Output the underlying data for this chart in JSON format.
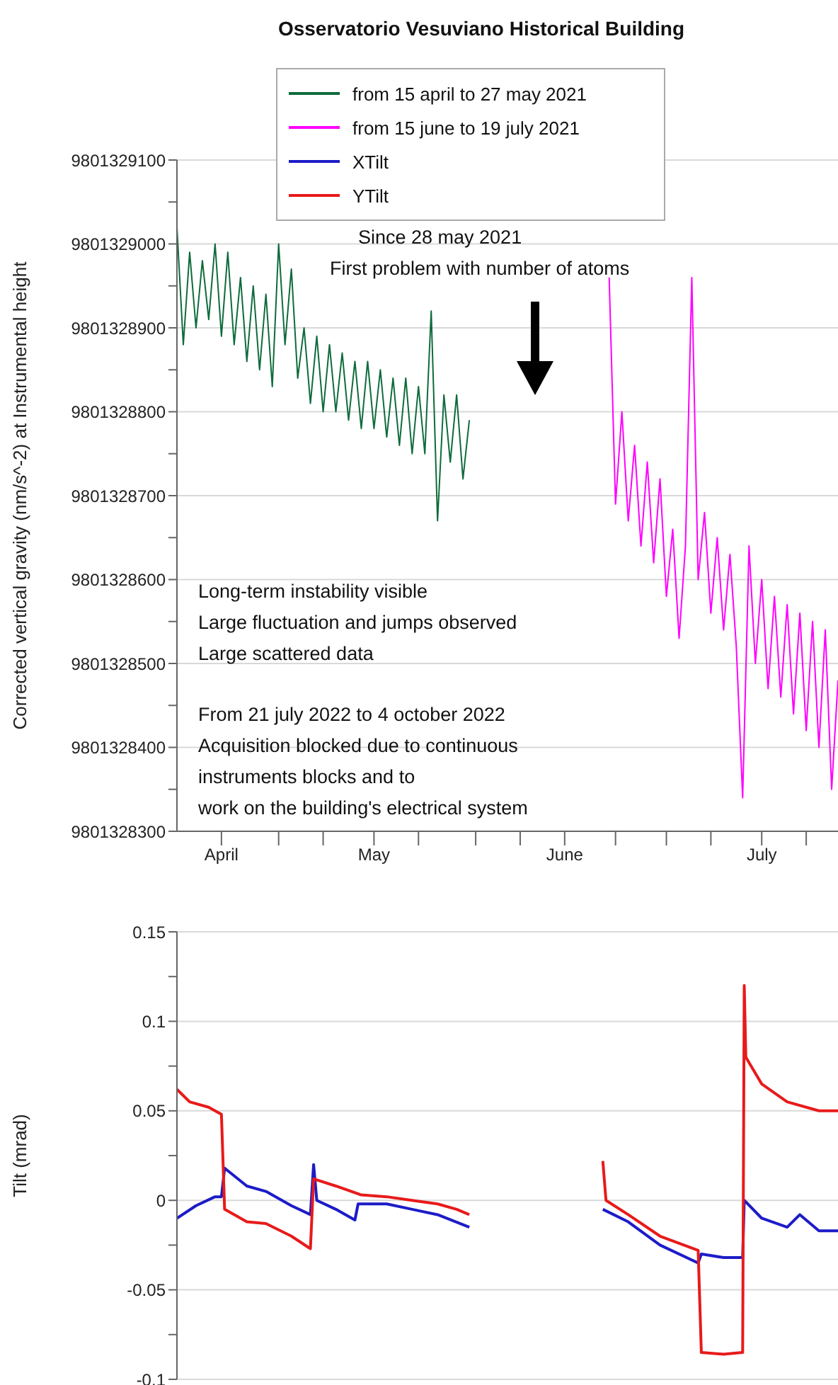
{
  "chart_data": [
    {
      "type": "line",
      "title": "Osservatorio Vesuviano Historical Building",
      "ylabel": "Corrected vertical gravity (nm/s^-2) at Instrumental height",
      "annotations": [
        "Since 28 may 2021",
        "First problem with number of atoms",
        "Long-term instability visible",
        "Large fluctuation and jumps observed",
        "Large scattered data",
        "From 21 july 2022 to 4 october 2022",
        "Acquisition blocked due to continuous",
        "instruments blocks and to",
        "work on the building's electrical system"
      ],
      "series": [
        {
          "name": "from 15 april to 27 may 2021",
          "color": "#0e6b3c",
          "x": [
            "2021-04-15",
            "2021-04-16",
            "2021-04-17",
            "2021-04-18",
            "2021-04-19",
            "2021-04-20",
            "2021-04-21",
            "2021-04-22",
            "2021-04-23",
            "2021-04-24",
            "2021-04-25",
            "2021-04-26",
            "2021-04-27",
            "2021-04-28",
            "2021-04-29",
            "2021-04-30",
            "2021-05-01",
            "2021-05-02",
            "2021-05-03",
            "2021-05-04",
            "2021-05-05",
            "2021-05-06",
            "2021-05-07",
            "2021-05-08",
            "2021-05-09",
            "2021-05-10",
            "2021-05-11",
            "2021-05-12",
            "2021-05-13",
            "2021-05-14",
            "2021-05-15",
            "2021-05-16",
            "2021-05-17",
            "2021-05-18",
            "2021-05-19",
            "2021-05-20",
            "2021-05-21",
            "2021-05-22",
            "2021-05-23",
            "2021-05-24",
            "2021-05-25",
            "2021-05-26",
            "2021-05-27",
            "2021-05-28",
            "2021-05-29",
            "2021-05-30",
            "2021-05-31"
          ],
          "values": [
            9801329020,
            9801328880,
            9801328990,
            9801328900,
            9801328980,
            9801328910,
            9801329000,
            9801328890,
            9801328990,
            9801328880,
            9801328960,
            9801328860,
            9801328950,
            9801328850,
            9801328940,
            9801328830,
            9801329000,
            9801328880,
            9801328970,
            9801328840,
            9801328900,
            9801328810,
            9801328890,
            9801328800,
            9801328880,
            9801328800,
            9801328870,
            9801328790,
            9801328860,
            9801328780,
            9801328860,
            9801328780,
            9801328850,
            9801328770,
            9801328840,
            9801328760,
            9801328840,
            9801328750,
            9801328830,
            9801328750,
            9801328920,
            9801328670,
            9801328820,
            9801328740,
            9801328820,
            9801328720,
            9801328790
          ]
        },
        {
          "name": "from 15 june to 19 july 2021",
          "color": "#ff00ff",
          "x": [
            "2021-06-22",
            "2021-06-23",
            "2021-06-24",
            "2021-06-25",
            "2021-06-26",
            "2021-06-27",
            "2021-06-28",
            "2021-06-29",
            "2021-06-30",
            "2021-07-01",
            "2021-07-02",
            "2021-07-03",
            "2021-07-04",
            "2021-07-05",
            "2021-07-06",
            "2021-07-07",
            "2021-07-08",
            "2021-07-09",
            "2021-07-10",
            "2021-07-11",
            "2021-07-12",
            "2021-07-13",
            "2021-07-14",
            "2021-07-15",
            "2021-07-16",
            "2021-07-17",
            "2021-07-18",
            "2021-07-19",
            "2021-07-20",
            "2021-07-21",
            "2021-07-22",
            "2021-07-23",
            "2021-07-24",
            "2021-07-25",
            "2021-07-26",
            "2021-07-27",
            "2021-07-28"
          ],
          "values": [
            9801328960,
            9801328690,
            9801328800,
            9801328670,
            9801328760,
            9801328640,
            9801328740,
            9801328620,
            9801328720,
            9801328580,
            9801328660,
            9801328530,
            9801328640,
            9801328960,
            9801328600,
            9801328680,
            9801328560,
            9801328650,
            9801328540,
            9801328630,
            9801328520,
            9801328340,
            9801328640,
            9801328500,
            9801328600,
            9801328470,
            9801328580,
            9801328460,
            9801328570,
            9801328440,
            9801328560,
            9801328420,
            9801328550,
            9801328400,
            9801328540,
            9801328350,
            9801328480
          ]
        }
      ],
      "xlim": [
        "2021-04-15",
        "2021-07-28"
      ],
      "xticks": [
        {
          "value": "2021-04-22",
          "label": "April"
        },
        {
          "value": "2021-05-01",
          "label": null
        },
        {
          "value": "2021-05-08",
          "label": null
        },
        {
          "value": "2021-05-16",
          "label": "May"
        },
        {
          "value": "2021-05-23",
          "label": null
        },
        {
          "value": "2021-06-01",
          "label": null
        },
        {
          "value": "2021-06-08",
          "label": null
        },
        {
          "value": "2021-06-15",
          "label": "June"
        },
        {
          "value": "2021-06-23",
          "label": null
        },
        {
          "value": "2021-07-01",
          "label": null
        },
        {
          "value": "2021-07-08",
          "label": null
        },
        {
          "value": "2021-07-16",
          "label": "July"
        },
        {
          "value": "2021-07-23",
          "label": null
        }
      ],
      "ylim": [
        9801328300,
        9801329100
      ],
      "yticks": [
        9801328300,
        {
          "value": 9801328350,
          "label": null
        },
        9801328400,
        {
          "value": 9801328450,
          "label": null
        },
        9801328500,
        {
          "value": 9801328550,
          "label": null
        },
        9801328600,
        {
          "value": 9801328650,
          "label": null
        },
        9801328700,
        {
          "value": 9801328750,
          "label": null
        },
        9801328800,
        {
          "value": 9801328850,
          "label": null
        },
        9801328900,
        {
          "value": 9801328950,
          "label": null
        },
        9801329000,
        {
          "value": 9801329050,
          "label": null
        },
        9801329100
      ],
      "grid": "y",
      "legend": "top"
    },
    {
      "type": "line",
      "ylabel": "Tilt (mrad)",
      "series": [
        {
          "name": "XTilt",
          "color": "#1c1cc8",
          "x": [
            "2021-04-15",
            "2021-04-18",
            "2021-04-21",
            "2021-04-22",
            "2021-04-22T12:00",
            "2021-04-26",
            "2021-04-29",
            "2021-05-03",
            "2021-05-06",
            "2021-05-06T12:00",
            "2021-05-07",
            "2021-05-10",
            "2021-05-13",
            "2021-05-13T12:00",
            "2021-05-18",
            "2021-05-22",
            "2021-05-26",
            "2021-05-31",
            "2021-06-10",
            "2021-06-21",
            "2021-06-25",
            "2021-06-30",
            "2021-07-06",
            "2021-07-06T12:00",
            "2021-07-10",
            "2021-07-13",
            "2021-07-13T06:00",
            "2021-07-16",
            "2021-07-20",
            "2021-07-22",
            "2021-07-25",
            "2021-07-28"
          ],
          "values": [
            -0.01,
            -0.003,
            0.002,
            0.002,
            0.018,
            0.008,
            0.005,
            -0.003,
            -0.008,
            0.02,
            0.0,
            -0.005,
            -0.011,
            -0.002,
            -0.002,
            -0.005,
            -0.008,
            -0.015,
            null,
            -0.005,
            -0.012,
            -0.025,
            -0.035,
            -0.03,
            -0.032,
            -0.032,
            0.0,
            -0.01,
            -0.015,
            -0.008,
            -0.017,
            -0.017
          ]
        },
        {
          "name": "YTilt",
          "color": "#e81a1a",
          "x": [
            "2021-04-15",
            "2021-04-17",
            "2021-04-20",
            "2021-04-22",
            "2021-04-22T12:00",
            "2021-04-26",
            "2021-04-29",
            "2021-05-03",
            "2021-05-06",
            "2021-05-06T12:00",
            "2021-05-10",
            "2021-05-14",
            "2021-05-18",
            "2021-05-22",
            "2021-05-26",
            "2021-05-29",
            "2021-05-31",
            "2021-06-10",
            "2021-06-21",
            "2021-06-21T12:00",
            "2021-06-25",
            "2021-06-30",
            "2021-07-06",
            "2021-07-06T12:00",
            "2021-07-10",
            "2021-07-13",
            "2021-07-13T06:00",
            "2021-07-13T12:00",
            "2021-07-16",
            "2021-07-20",
            "2021-07-25",
            "2021-07-28"
          ],
          "values": [
            0.062,
            0.055,
            0.052,
            0.048,
            -0.005,
            -0.012,
            -0.013,
            -0.02,
            -0.027,
            0.012,
            0.008,
            0.003,
            0.002,
            0.0,
            -0.002,
            -0.005,
            -0.008,
            null,
            0.022,
            0.0,
            -0.008,
            -0.02,
            -0.028,
            -0.085,
            -0.086,
            -0.085,
            0.12,
            0.08,
            0.065,
            0.055,
            0.05,
            0.05
          ]
        }
      ],
      "xlim": [
        "2021-04-15",
        "2021-07-28"
      ],
      "ylim": [
        -0.1,
        0.15
      ],
      "yticks": [
        -0.1,
        {
          "value": -0.075,
          "label": null
        },
        -0.05,
        {
          "value": -0.025,
          "label": null
        },
        0,
        {
          "value": 0.025,
          "label": null
        },
        0.05,
        {
          "value": 0.075,
          "label": null
        },
        0.1,
        {
          "value": 0.125,
          "label": null
        },
        0.15
      ],
      "grid": "y",
      "tick_labels": "y",
      "legend": "top"
    }
  ]
}
